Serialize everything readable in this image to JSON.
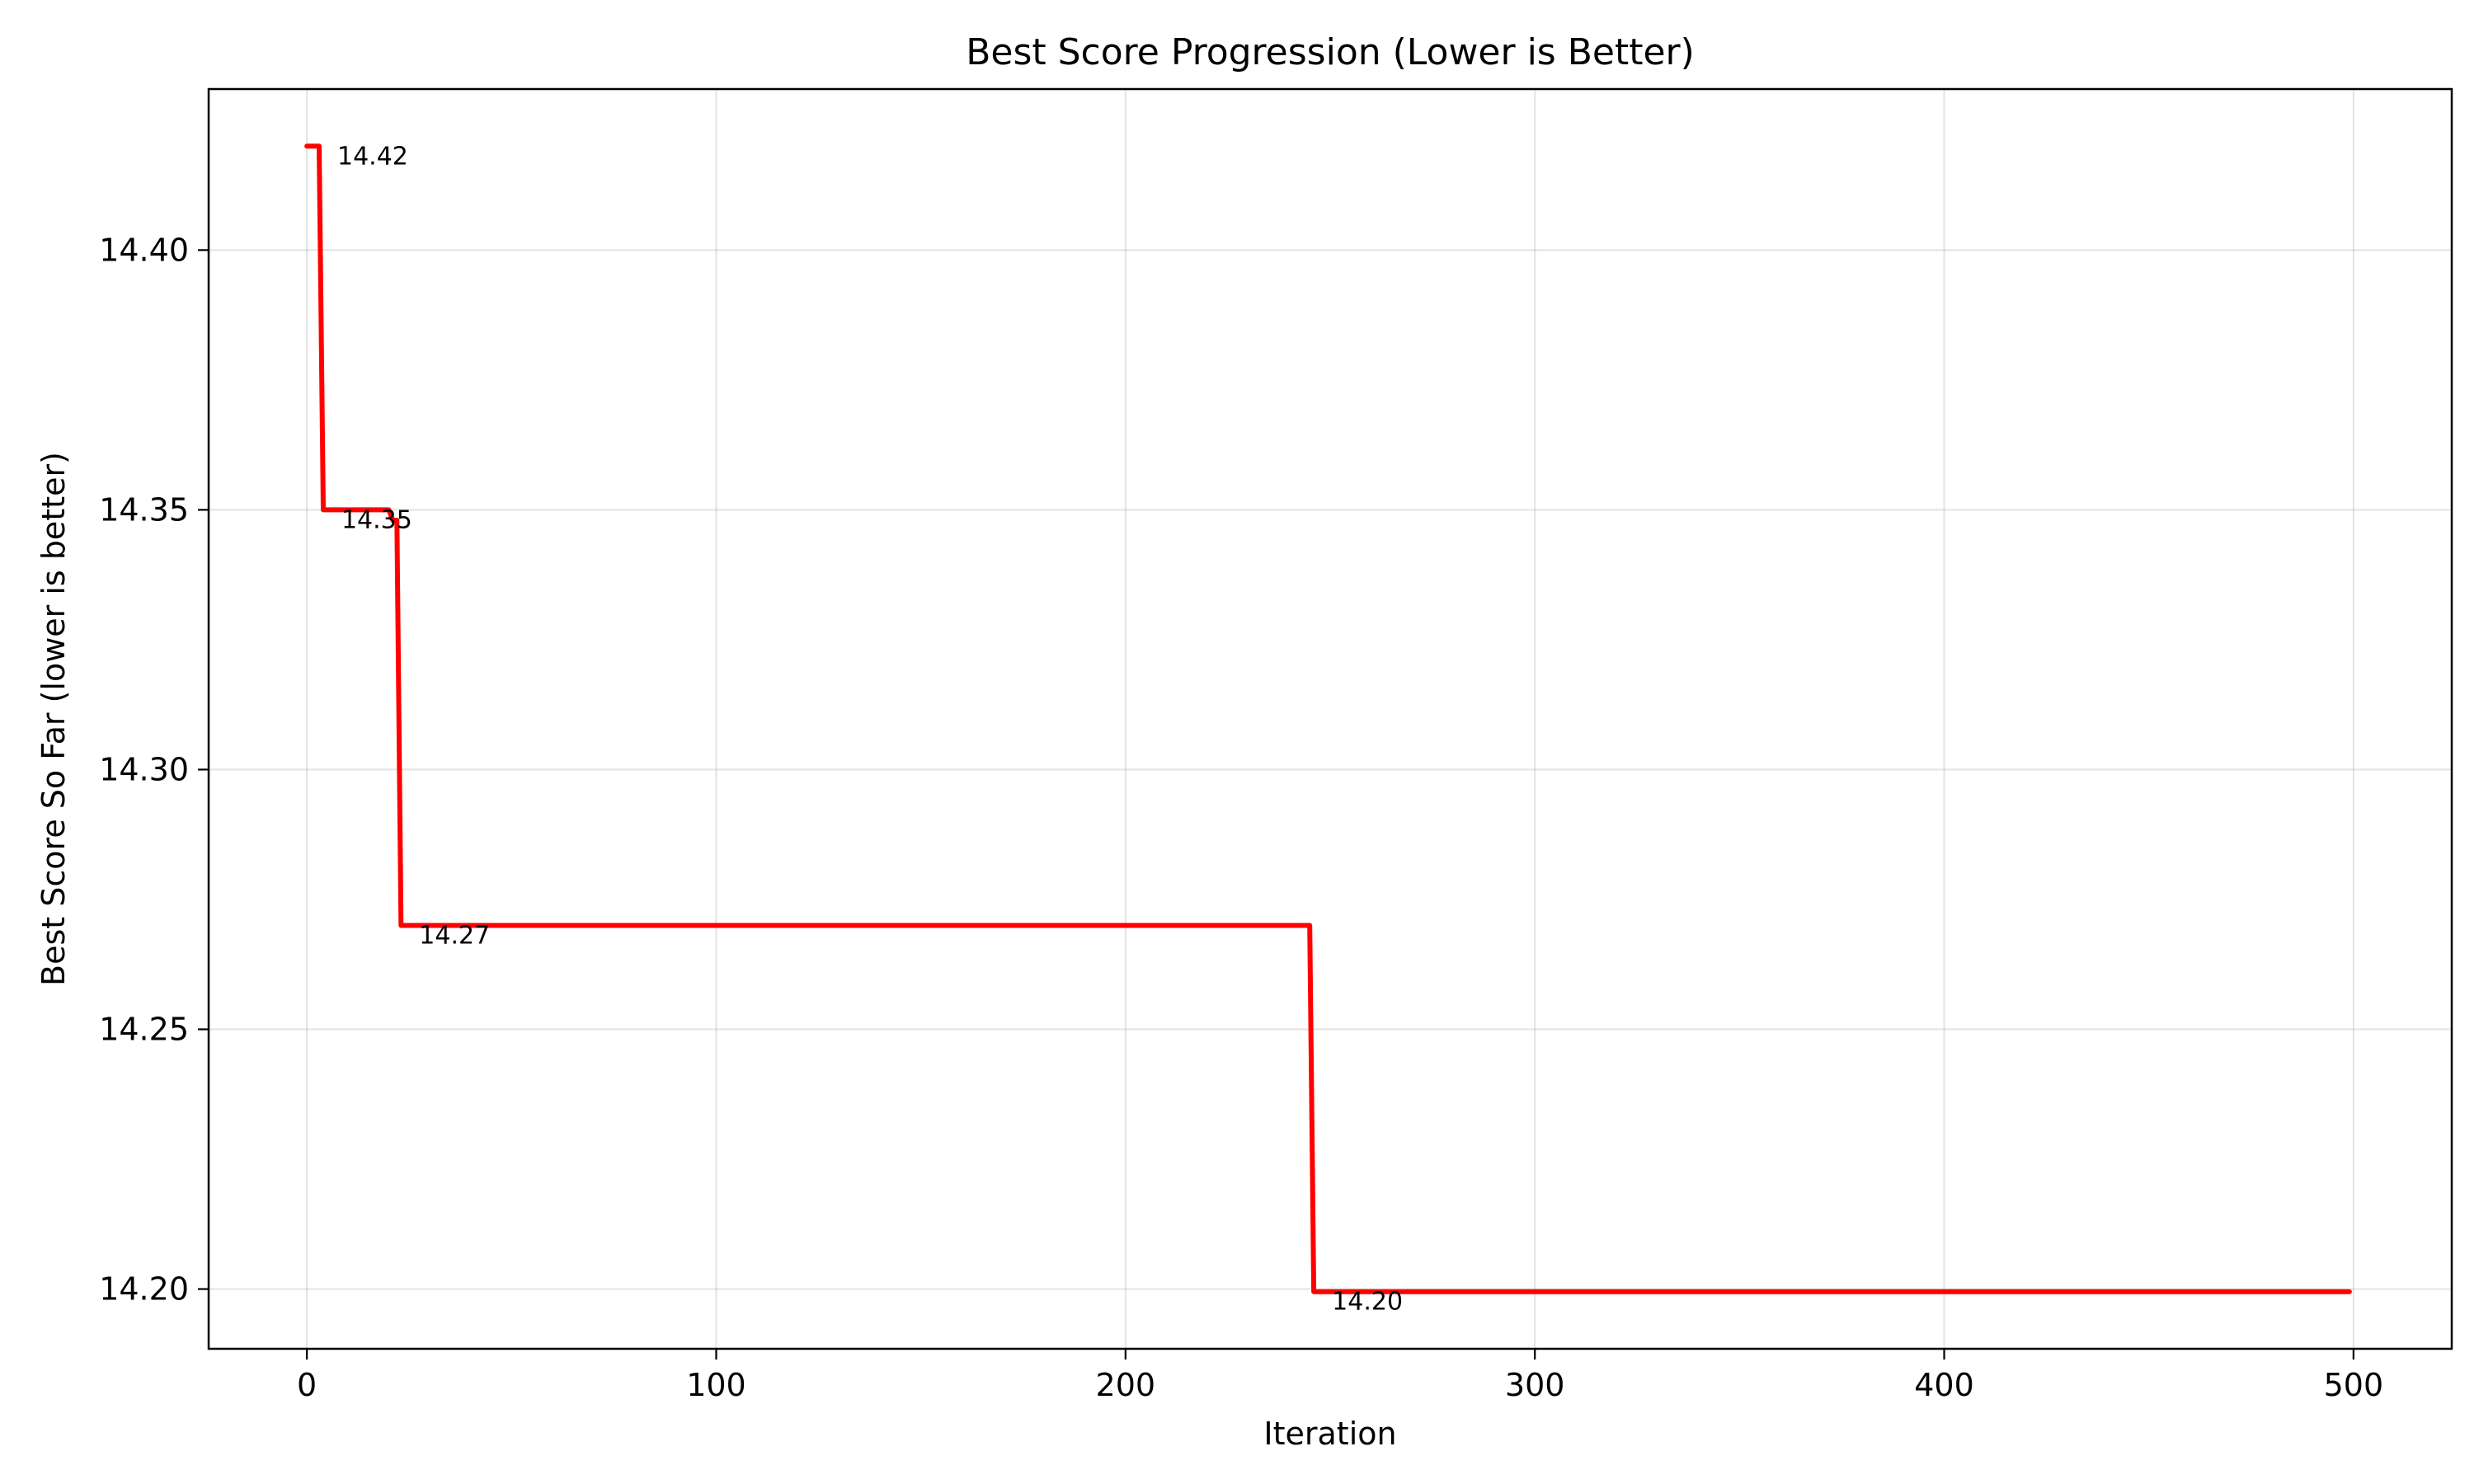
{
  "chart_data": {
    "type": "line",
    "title": "Best Score Progression (Lower is Better)",
    "xlabel": "Iteration",
    "ylabel": "Best Score So Far (lower is better)",
    "xlim": [
      -24,
      524
    ],
    "ylim": [
      14.1885,
      14.431
    ],
    "grid": true,
    "x_ticks": [
      0,
      100,
      200,
      300,
      400,
      500
    ],
    "x_tick_labels": [
      "0",
      "100",
      "200",
      "300",
      "400",
      "500"
    ],
    "y_ticks": [
      14.2,
      14.25,
      14.3,
      14.35,
      14.4
    ],
    "y_tick_labels": [
      "14.20",
      "14.25",
      "14.30",
      "14.35",
      "14.40"
    ],
    "series": [
      {
        "name": "Best Score So Far",
        "color": "#ff0000",
        "x": [
          0,
          3,
          4,
          20,
          21,
          22,
          23,
          245,
          246,
          499
        ],
        "y": [
          14.42,
          14.42,
          14.35,
          14.35,
          14.348,
          14.348,
          14.27,
          14.27,
          14.1995,
          14.1995
        ]
      }
    ],
    "annotations": [
      {
        "text": "14.42",
        "x": 3,
        "y": 14.42
      },
      {
        "text": "14.35",
        "x": 4,
        "y": 14.35
      },
      {
        "text": "14.27",
        "x": 23,
        "y": 14.27
      },
      {
        "text": "14.20",
        "x": 246,
        "y": 14.1995
      }
    ]
  }
}
